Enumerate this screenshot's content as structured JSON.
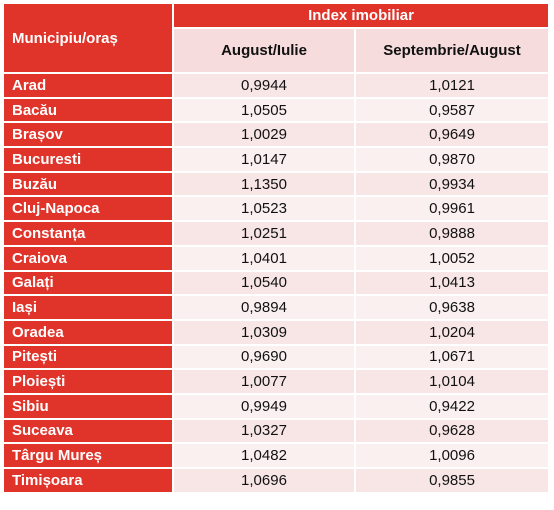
{
  "header": {
    "city_label": "Municipiu/oraș",
    "group_label": "Index imobiliar",
    "col1_label": "August/Iulie",
    "col2_label": "Septembrie/August"
  },
  "rows": [
    {
      "city": "Arad",
      "aug_iul": "0,9944",
      "sep_aug": "1,0121"
    },
    {
      "city": "Bacău",
      "aug_iul": "1,0505",
      "sep_aug": "0,9587"
    },
    {
      "city": "Brașov",
      "aug_iul": "1,0029",
      "sep_aug": "0,9649"
    },
    {
      "city": "Bucuresti",
      "aug_iul": "1,0147",
      "sep_aug": "0,9870"
    },
    {
      "city": "Buzău",
      "aug_iul": "1,1350",
      "sep_aug": "0,9934"
    },
    {
      "city": "Cluj-Napoca",
      "aug_iul": "1,0523",
      "sep_aug": "0,9961"
    },
    {
      "city": "Constanța",
      "aug_iul": "1,0251",
      "sep_aug": "0,9888"
    },
    {
      "city": "Craiova",
      "aug_iul": "1,0401",
      "sep_aug": "1,0052"
    },
    {
      "city": "Galați",
      "aug_iul": "1,0540",
      "sep_aug": "1,0413"
    },
    {
      "city": "Iași",
      "aug_iul": "0,9894",
      "sep_aug": "0,9638"
    },
    {
      "city": "Oradea",
      "aug_iul": "1,0309",
      "sep_aug": "1,0204"
    },
    {
      "city": "Pitești",
      "aug_iul": "0,9690",
      "sep_aug": "1,0671"
    },
    {
      "city": "Ploiești",
      "aug_iul": "1,0077",
      "sep_aug": "1,0104"
    },
    {
      "city": "Sibiu",
      "aug_iul": "0,9949",
      "sep_aug": "0,9422"
    },
    {
      "city": "Suceava",
      "aug_iul": "1,0327",
      "sep_aug": "0,9628"
    },
    {
      "city": "Târgu Mureș",
      "aug_iul": "1,0482",
      "sep_aug": "1,0096"
    },
    {
      "city": "Timișoara",
      "aug_iul": "1,0696",
      "sep_aug": "0,9855"
    }
  ],
  "colors": {
    "header_red": "#e0342b",
    "subheader_pink": "#f6dcdc",
    "row_pink": "#f8e6e6",
    "row_light": "#fbf0f0"
  }
}
